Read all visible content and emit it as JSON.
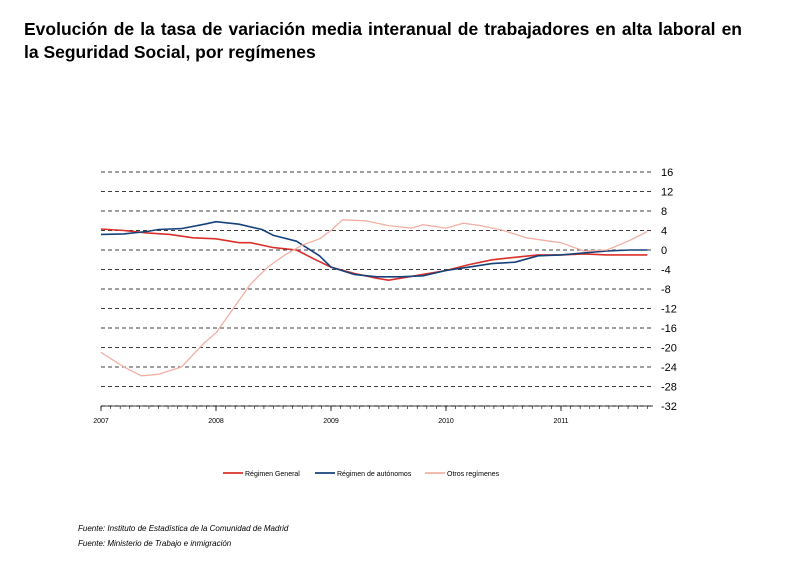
{
  "title": "Evolución de la tasa de variación media interanual de trabajadores en alta laboral en la Seguridad Social, por  regímenes",
  "sources": [
    "Fuente: Instituto de Estadística de la Comunidad de Madrid",
    "Fuente: Ministerio de Trabajo e inmigración"
  ],
  "chart_data": {
    "type": "line",
    "title": "",
    "xlabel": "",
    "ylabel": "",
    "x_ticks": [
      "2007",
      "2008",
      "2009",
      "2010",
      "2011"
    ],
    "xlim": [
      2007,
      2011.8
    ],
    "y_ticks": [
      16,
      12,
      8,
      4,
      0,
      -4,
      -8,
      -12,
      -16,
      -20,
      -24,
      -28,
      -32
    ],
    "ylim": [
      -32,
      16
    ],
    "y_axis_position": "right",
    "grid": "horizontal dashed",
    "legend_position": "bottom",
    "series": [
      {
        "name": "Régimen General",
        "color": "#d9302a",
        "x": [
          2007.0,
          2007.2,
          2007.4,
          2007.6,
          2007.8,
          2008.0,
          2008.2,
          2008.3,
          2008.5,
          2008.7,
          2008.85,
          2009.0,
          2009.2,
          2009.4,
          2009.5,
          2009.6,
          2009.8,
          2010.0,
          2010.2,
          2010.4,
          2010.6,
          2010.8,
          2011.0,
          2011.2,
          2011.4,
          2011.6,
          2011.75
        ],
        "values": [
          4.3,
          4.0,
          3.5,
          3.2,
          2.5,
          2.3,
          1.5,
          1.5,
          0.5,
          0.0,
          -1.8,
          -3.5,
          -4.8,
          -5.8,
          -6.2,
          -5.8,
          -5.0,
          -4.2,
          -3.0,
          -2.0,
          -1.5,
          -1.0,
          -1.0,
          -0.8,
          -1.0,
          -1.0,
          -1.0
        ]
      },
      {
        "name": "Régimen de autónomos",
        "color": "#16427a",
        "x": [
          2007.0,
          2007.2,
          2007.4,
          2007.5,
          2007.7,
          2007.9,
          2008.0,
          2008.2,
          2008.4,
          2008.5,
          2008.7,
          2008.9,
          2009.0,
          2009.2,
          2009.4,
          2009.6,
          2009.8,
          2010.0,
          2010.2,
          2010.4,
          2010.6,
          2010.8,
          2011.0,
          2011.2,
          2011.4,
          2011.6,
          2011.75
        ],
        "values": [
          3.2,
          3.3,
          3.8,
          4.2,
          4.4,
          5.3,
          5.8,
          5.3,
          4.2,
          3.0,
          1.8,
          -1.2,
          -3.5,
          -5.0,
          -5.5,
          -5.5,
          -5.3,
          -4.2,
          -3.5,
          -2.8,
          -2.5,
          -1.2,
          -1.0,
          -0.6,
          -0.2,
          0.0,
          0.0
        ]
      },
      {
        "name": "Otros regímenes",
        "color": "#f2b0a4",
        "x": [
          2007.0,
          2007.2,
          2007.35,
          2007.5,
          2007.7,
          2007.9,
          2008.0,
          2008.15,
          2008.3,
          2008.45,
          2008.6,
          2008.75,
          2008.9,
          2009.0,
          2009.1,
          2009.3,
          2009.5,
          2009.7,
          2009.8,
          2010.0,
          2010.15,
          2010.3,
          2010.5,
          2010.7,
          2010.9,
          2011.0,
          2011.2,
          2011.4,
          2011.6,
          2011.75
        ],
        "values": [
          -21.0,
          -24.0,
          -25.8,
          -25.5,
          -24.0,
          -19.0,
          -17.0,
          -12.0,
          -7.0,
          -3.5,
          -1.0,
          1.0,
          2.3,
          4.0,
          6.2,
          6.0,
          5.0,
          4.5,
          5.2,
          4.5,
          5.5,
          5.0,
          4.0,
          2.5,
          1.8,
          1.5,
          -0.2,
          0.0,
          2.0,
          3.8
        ]
      }
    ]
  }
}
